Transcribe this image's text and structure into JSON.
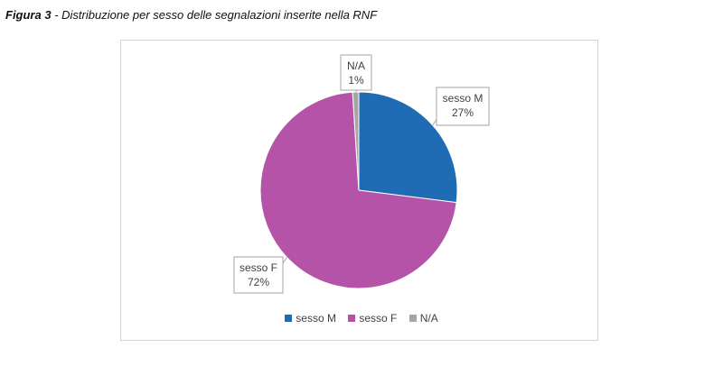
{
  "caption": {
    "label": "Figura 3",
    "text": " - Distribuzione per sesso delle segnalazioni inserite nella RNF"
  },
  "chart_data": {
    "type": "pie",
    "title": "",
    "slices": [
      {
        "name": "sesso M",
        "value": 27,
        "label": "27%",
        "color": "#1f6cb5"
      },
      {
        "name": "sesso F",
        "value": 72,
        "label": "72%",
        "color": "#b553a8"
      },
      {
        "name": "N/A",
        "value": 1,
        "label": "1%",
        "color": "#a5a5a5"
      }
    ],
    "legend_position": "bottom"
  }
}
